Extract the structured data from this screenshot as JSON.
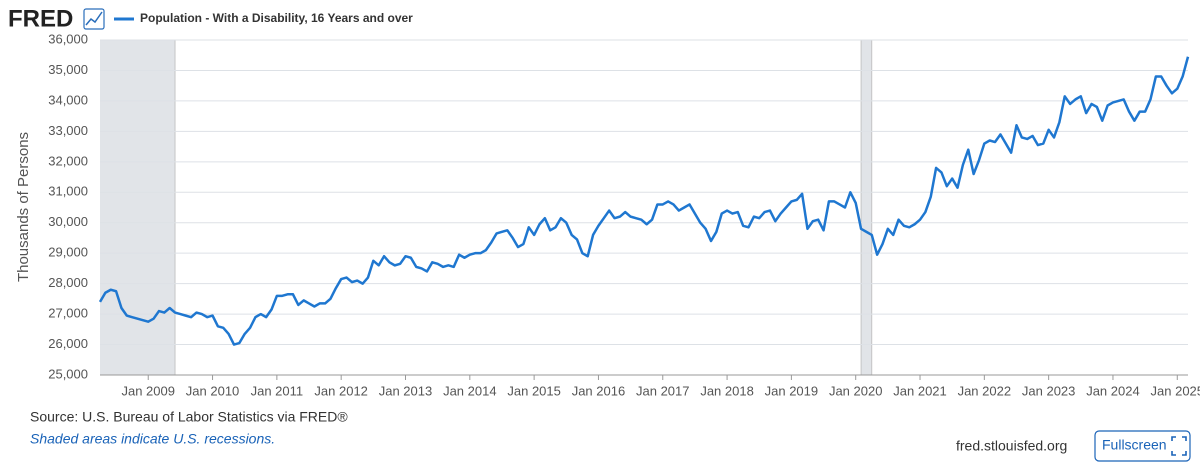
{
  "header": {
    "logo": "FRED"
  },
  "chart_data": {
    "type": "line",
    "y_label": "Thousands of Persons",
    "grid": true,
    "series": [
      {
        "name": "Population - With a Disability, 16 Years and over",
        "color": "#1f77d0",
        "values": [
          27400,
          27700,
          27800,
          27750,
          27200,
          26950,
          26900,
          26850,
          26800,
          26750,
          26850,
          27100,
          27050,
          27200,
          27050,
          27000,
          26950,
          26900,
          27050,
          27000,
          26900,
          26950,
          26600,
          26550,
          26350,
          26000,
          26050,
          26350,
          26550,
          26900,
          27000,
          26900,
          27150,
          27600,
          27600,
          27650,
          27650,
          27300,
          27450,
          27350,
          27250,
          27350,
          27350,
          27500,
          27850,
          28150,
          28200,
          28050,
          28100,
          28000,
          28200,
          28750,
          28600,
          28900,
          28700,
          28600,
          28650,
          28900,
          28850,
          28550,
          28500,
          28400,
          28700,
          28650,
          28550,
          28600,
          28550,
          28950,
          28850,
          28950,
          29000,
          29000,
          29100,
          29350,
          29650,
          29700,
          29750,
          29500,
          29200,
          29300,
          29850,
          29600,
          29950,
          30150,
          29750,
          29850,
          30150,
          30000,
          29600,
          29450,
          29000,
          28900,
          29600,
          29900,
          30150,
          30400,
          30150,
          30200,
          30350,
          30200,
          30150,
          30100,
          29950,
          30100,
          30600,
          30600,
          30700,
          30600,
          30400,
          30500,
          30600,
          30300,
          30000,
          29800,
          29400,
          29700,
          30300,
          30400,
          30300,
          30350,
          29900,
          29850,
          30200,
          30150,
          30350,
          30400,
          30050,
          30300,
          30500,
          30700,
          30750,
          30950,
          29800,
          30050,
          30100,
          29750,
          30700,
          30700,
          30600,
          30500,
          31000,
          30650,
          29800,
          29700,
          29600,
          28950,
          29300,
          29800,
          29600,
          30100,
          29900,
          29850,
          29950,
          30100,
          30350,
          30850,
          31800,
          31650,
          31200,
          31450,
          31150,
          31900,
          32400,
          31600,
          32050,
          32600,
          32700,
          32650,
          32900,
          32600,
          32300,
          33200,
          32800,
          32750,
          32850,
          32550,
          32600,
          33050,
          32800,
          33300,
          34150,
          33900,
          34050,
          34150,
          33600,
          33900,
          33800,
          33350,
          33850,
          33950,
          34000,
          34050,
          33650,
          33350,
          33650,
          33650,
          34050,
          34800,
          34800,
          34500,
          34250,
          34400,
          34800,
          35450
        ]
      }
    ],
    "x": [
      "2008-04",
      "2008-05",
      "2008-06",
      "2008-07",
      "2008-08",
      "2008-09",
      "2008-10",
      "2008-11",
      "2008-12",
      "2009-01",
      "2009-02",
      "2009-03",
      "2009-04",
      "2009-05",
      "2009-06",
      "2009-07",
      "2009-08",
      "2009-09",
      "2009-10",
      "2009-11",
      "2009-12",
      "2010-01",
      "2010-02",
      "2010-03",
      "2010-04",
      "2010-05",
      "2010-06",
      "2010-07",
      "2010-08",
      "2010-09",
      "2010-10",
      "2010-11",
      "2010-12",
      "2011-01",
      "2011-02",
      "2011-03",
      "2011-04",
      "2011-05",
      "2011-06",
      "2011-07",
      "2011-08",
      "2011-09",
      "2011-10",
      "2011-11",
      "2011-12",
      "2012-01",
      "2012-02",
      "2012-03",
      "2012-04",
      "2012-05",
      "2012-06",
      "2012-07",
      "2012-08",
      "2012-09",
      "2012-10",
      "2012-11",
      "2012-12",
      "2013-01",
      "2013-02",
      "2013-03",
      "2013-04",
      "2013-05",
      "2013-06",
      "2013-07",
      "2013-08",
      "2013-09",
      "2013-10",
      "2013-11",
      "2013-12",
      "2014-01",
      "2014-02",
      "2014-03",
      "2014-04",
      "2014-05",
      "2014-06",
      "2014-07",
      "2014-08",
      "2014-09",
      "2014-10",
      "2014-11",
      "2014-12",
      "2015-01",
      "2015-02",
      "2015-03",
      "2015-04",
      "2015-05",
      "2015-06",
      "2015-07",
      "2015-08",
      "2015-09",
      "2015-10",
      "2015-11",
      "2015-12",
      "2016-01",
      "2016-02",
      "2016-03",
      "2016-04",
      "2016-05",
      "2016-06",
      "2016-07",
      "2016-08",
      "2016-09",
      "2016-10",
      "2016-11",
      "2016-12",
      "2017-01",
      "2017-02",
      "2017-03",
      "2017-04",
      "2017-05",
      "2017-06",
      "2017-07",
      "2017-08",
      "2017-09",
      "2017-10",
      "2017-11",
      "2017-12",
      "2018-01",
      "2018-02",
      "2018-03",
      "2018-04",
      "2018-05",
      "2018-06",
      "2018-07",
      "2018-08",
      "2018-09",
      "2018-10",
      "2018-11",
      "2018-12",
      "2019-01",
      "2019-02",
      "2019-03",
      "2019-04",
      "2019-05",
      "2019-06",
      "2019-07",
      "2019-08",
      "2019-09",
      "2019-10",
      "2019-11",
      "2019-12",
      "2020-01",
      "2020-02",
      "2020-03",
      "2020-04",
      "2020-05",
      "2020-06",
      "2020-07",
      "2020-08",
      "2020-09",
      "2020-10",
      "2020-11",
      "2020-12",
      "2021-01",
      "2021-02",
      "2021-03",
      "2021-04",
      "2021-05",
      "2021-06",
      "2021-07",
      "2021-08",
      "2021-09",
      "2021-10",
      "2021-11",
      "2021-12",
      "2022-01",
      "2022-02",
      "2022-03",
      "2022-04",
      "2022-05",
      "2022-06",
      "2022-07",
      "2022-08",
      "2022-09",
      "2022-10",
      "2022-11",
      "2022-12",
      "2023-01",
      "2023-02",
      "2023-03",
      "2023-04",
      "2023-05",
      "2023-06",
      "2023-07",
      "2023-08",
      "2023-09",
      "2023-10",
      "2023-11",
      "2023-12",
      "2024-01",
      "2024-02",
      "2024-03",
      "2024-04",
      "2024-05",
      "2024-06",
      "2024-07",
      "2024-08",
      "2024-09",
      "2024-10",
      "2024-11",
      "2024-12",
      "2025-01",
      "2025-02",
      "2025-03"
    ],
    "xlim": [
      "2008-04",
      "2025-03"
    ],
    "xticks": [
      {
        "value": "2009-01",
        "label": "Jan 2009"
      },
      {
        "value": "2010-01",
        "label": "Jan 2010"
      },
      {
        "value": "2011-01",
        "label": "Jan 2011"
      },
      {
        "value": "2012-01",
        "label": "Jan 2012"
      },
      {
        "value": "2013-01",
        "label": "Jan 2013"
      },
      {
        "value": "2014-01",
        "label": "Jan 2014"
      },
      {
        "value": "2015-01",
        "label": "Jan 2015"
      },
      {
        "value": "2016-01",
        "label": "Jan 2016"
      },
      {
        "value": "2017-01",
        "label": "Jan 2017"
      },
      {
        "value": "2018-01",
        "label": "Jan 2018"
      },
      {
        "value": "2019-01",
        "label": "Jan 2019"
      },
      {
        "value": "2020-01",
        "label": "Jan 2020"
      },
      {
        "value": "2021-01",
        "label": "Jan 2021"
      },
      {
        "value": "2022-01",
        "label": "Jan 2022"
      },
      {
        "value": "2023-01",
        "label": "Jan 2023"
      },
      {
        "value": "2024-01",
        "label": "Jan 2024"
      },
      {
        "value": "2025-01",
        "label": "Jan 2025"
      }
    ],
    "ylim": [
      25000,
      36000
    ],
    "yticks": [
      {
        "value": 25000,
        "label": "25,000"
      },
      {
        "value": 26000,
        "label": "26,000"
      },
      {
        "value": 27000,
        "label": "27,000"
      },
      {
        "value": 28000,
        "label": "28,000"
      },
      {
        "value": 29000,
        "label": "29,000"
      },
      {
        "value": 30000,
        "label": "30,000"
      },
      {
        "value": 31000,
        "label": "31,000"
      },
      {
        "value": 32000,
        "label": "32,000"
      },
      {
        "value": 33000,
        "label": "33,000"
      },
      {
        "value": 34000,
        "label": "34,000"
      },
      {
        "value": 35000,
        "label": "35,000"
      },
      {
        "value": 36000,
        "label": "36,000"
      }
    ],
    "recessions": [
      [
        "2007-12",
        "2009-06"
      ],
      [
        "2020-02",
        "2020-04"
      ]
    ]
  },
  "footer": {
    "source": "Source: U.S. Bureau of Labor Statistics via FRED®",
    "note": "Shaded areas indicate U.S. recessions.",
    "site": "fred.stlouisfed.org",
    "button": "Fullscreen"
  }
}
